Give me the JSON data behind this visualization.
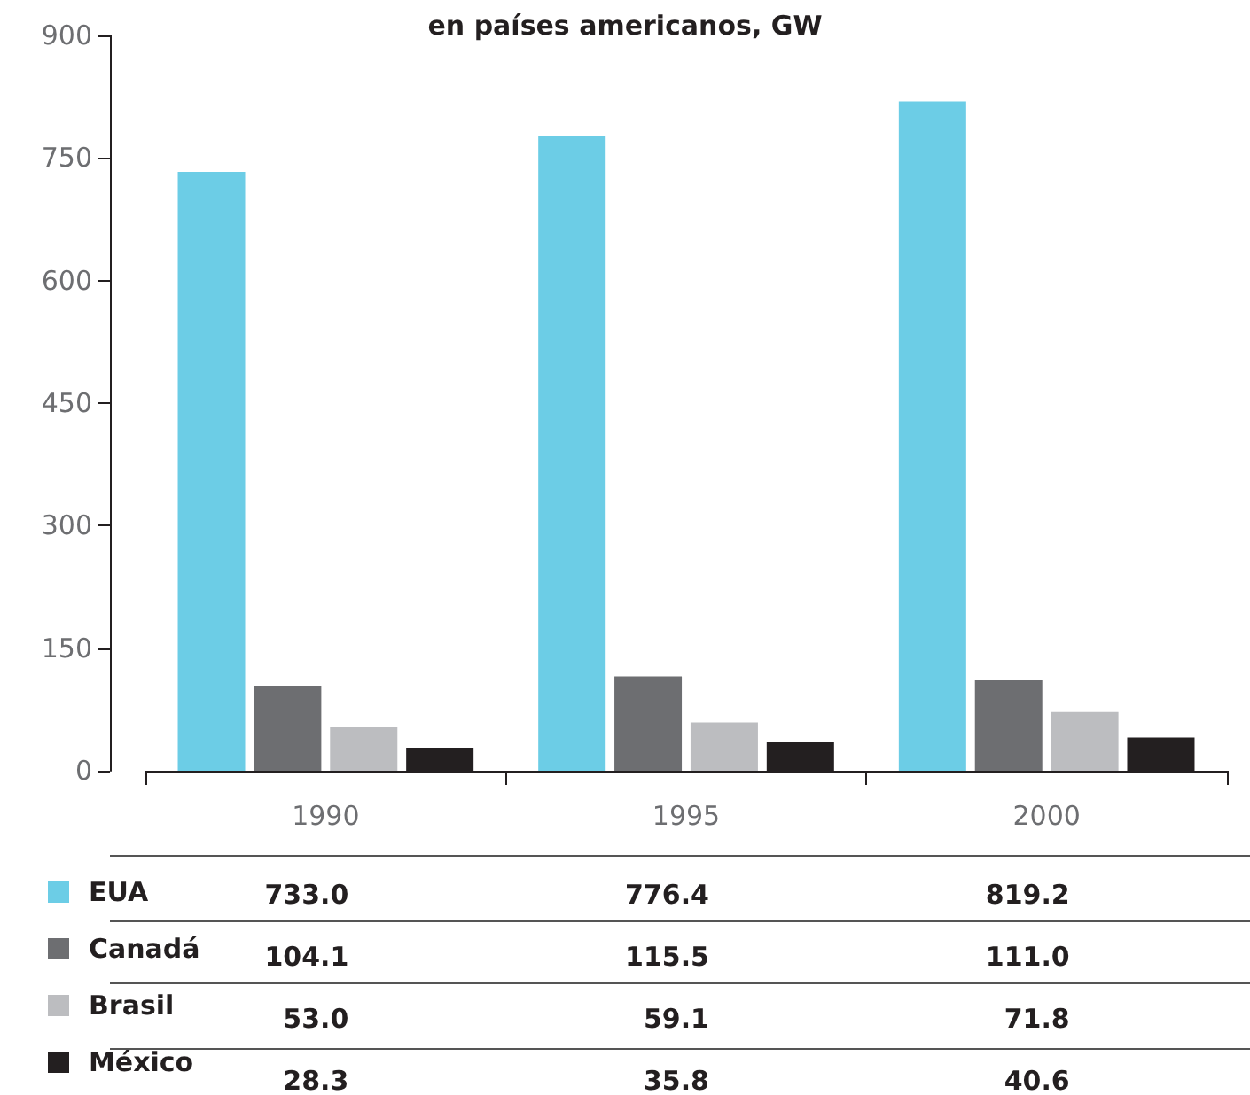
{
  "chart_data": {
    "type": "bar",
    "title": "en países americanos, GW",
    "categories": [
      "1990",
      "1995",
      "2000"
    ],
    "series": [
      {
        "name": "EUA",
        "color": "#6ccde6",
        "values": [
          733.0,
          776.4,
          819.2
        ],
        "value_labels": [
          "733.0",
          "776.4",
          "819.2"
        ]
      },
      {
        "name": "Canadá",
        "color": "#6d6e71",
        "values": [
          104.1,
          115.5,
          111.0
        ],
        "value_labels": [
          "104.1",
          "115.5",
          "111.0"
        ]
      },
      {
        "name": "Brasil",
        "color": "#bcbdc0",
        "values": [
          53.0,
          59.1,
          71.8
        ],
        "value_labels": [
          "53.0",
          "59.1",
          "71.8"
        ]
      },
      {
        "name": "México",
        "color": "#231f20",
        "values": [
          28.3,
          35.8,
          40.6
        ],
        "value_labels": [
          "28.3",
          "35.8",
          "40.6"
        ]
      }
    ],
    "ylim": [
      0,
      900
    ],
    "yticks": [
      0,
      150,
      300,
      450,
      600,
      750,
      900
    ],
    "grid": false,
    "legend": "bottom left"
  }
}
